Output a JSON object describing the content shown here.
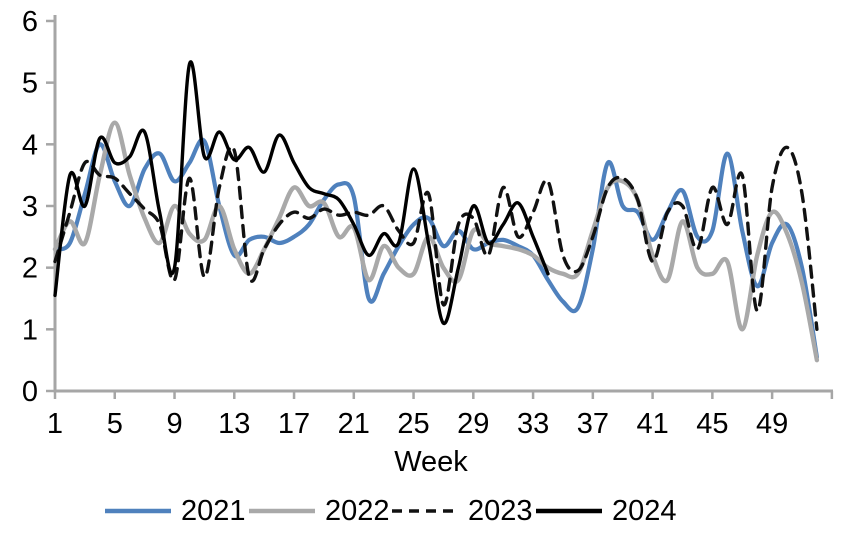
{
  "chart_data": {
    "type": "line",
    "title": "",
    "x_label": "Week",
    "x_ticks": [
      1,
      5,
      9,
      13,
      17,
      21,
      25,
      29,
      33,
      37,
      41,
      45,
      49
    ],
    "x_axis_end_tick_week": 53,
    "x_range": [
      1,
      52
    ],
    "y_ticks": [
      0,
      1,
      2,
      3,
      4,
      5,
      6
    ],
    "y_range": [
      0,
      6
    ],
    "grid": false,
    "legend_position": "bottom",
    "axis_color": "#a6a6a6",
    "text_color": "#000000",
    "series": [
      {
        "name": "2021",
        "color": "#4f81bd",
        "style": "solid",
        "start_week": 1,
        "values": [
          2.3,
          2.4,
          3.2,
          4.0,
          3.4,
          3.0,
          3.6,
          3.85,
          3.4,
          3.7,
          4.05,
          3.0,
          2.2,
          2.45,
          2.5,
          2.4,
          2.5,
          2.7,
          3.1,
          3.35,
          3.15,
          1.5,
          1.9,
          2.35,
          2.7,
          2.8,
          2.35,
          2.6,
          2.3,
          2.4,
          2.45,
          2.35,
          2.2,
          1.8,
          1.45,
          1.35,
          2.3,
          3.7,
          3.0,
          2.9,
          2.45,
          2.9,
          3.25,
          2.5,
          2.6,
          3.85,
          2.6,
          1.7,
          2.4,
          2.7,
          2.0,
          0.55
        ]
      },
      {
        "name": "2022",
        "color": "#a9a9a9",
        "style": "solid",
        "start_week": 1,
        "values": [
          2.3,
          2.75,
          2.4,
          3.5,
          4.35,
          3.5,
          2.8,
          2.4,
          3.0,
          2.55,
          2.45,
          3.0,
          2.3,
          1.9,
          2.3,
          2.8,
          3.3,
          3.0,
          3.05,
          2.5,
          2.65,
          1.8,
          2.35,
          2.0,
          1.9,
          2.5,
          2.0,
          1.8,
          2.6,
          2.4,
          2.35,
          2.3,
          2.2,
          2.0,
          1.9,
          1.9,
          2.6,
          3.3,
          3.4,
          3.1,
          2.2,
          1.8,
          2.75,
          2.0,
          1.9,
          2.1,
          1.0,
          2.2,
          2.9,
          2.55,
          1.75,
          0.5
        ]
      },
      {
        "name": "2023",
        "color": "#111111",
        "style": "dashed",
        "start_week": 1,
        "values": [
          2.1,
          2.9,
          3.7,
          3.5,
          3.45,
          3.2,
          2.95,
          2.7,
          1.8,
          3.45,
          1.85,
          3.3,
          3.9,
          1.85,
          2.3,
          2.7,
          2.9,
          2.8,
          2.95,
          2.85,
          2.9,
          2.85,
          3.0,
          2.6,
          2.4,
          3.2,
          1.4,
          2.7,
          2.8,
          2.2,
          3.3,
          2.5,
          2.9,
          3.4,
          2.2,
          1.95,
          2.5,
          3.3,
          3.45,
          3.1,
          2.1,
          2.9,
          3.0,
          2.3,
          3.3,
          2.7,
          3.5,
          1.3,
          3.3,
          3.95,
          3.2,
          1.0
        ]
      },
      {
        "name": "2024",
        "color": "#000000",
        "style": "solid",
        "start_week": 1,
        "values": [
          1.55,
          3.5,
          3.0,
          4.1,
          3.7,
          3.8,
          4.2,
          2.9,
          2.0,
          5.3,
          3.8,
          4.2,
          3.75,
          3.95,
          3.55,
          4.15,
          3.7,
          3.3,
          3.2,
          3.1,
          2.7,
          2.2,
          2.55,
          2.4,
          3.6,
          2.4,
          1.1,
          2.0,
          3.0,
          2.4,
          2.7,
          3.05,
          2.5,
          1.9
        ]
      }
    ]
  }
}
